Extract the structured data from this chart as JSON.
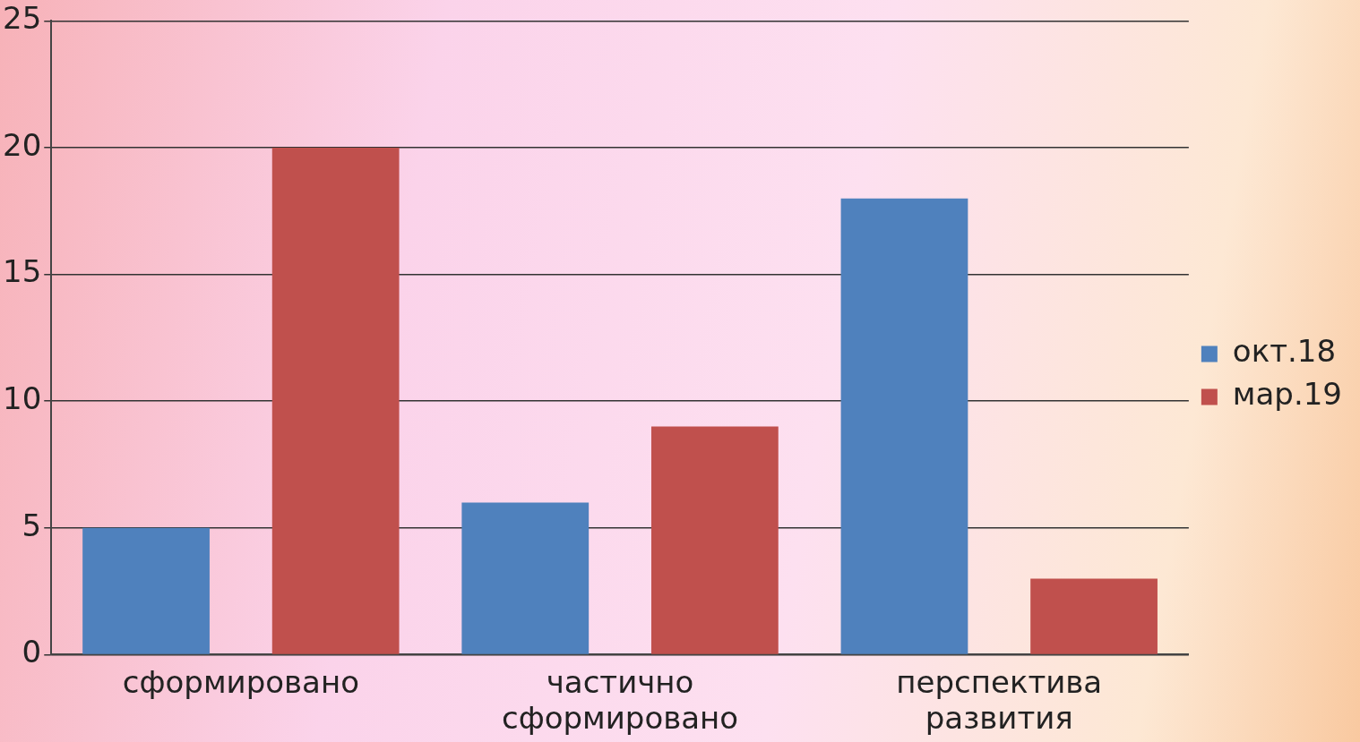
{
  "chart_data": {
    "type": "bar",
    "categories": [
      "сформировано",
      "частично сформировано",
      "перспектива развития"
    ],
    "series": [
      {
        "name": "окт.18",
        "color": "#4f81bd",
        "values": [
          5,
          6,
          18
        ]
      },
      {
        "name": "мар.19",
        "color": "#c0504d",
        "values": [
          20,
          9,
          3
        ]
      }
    ],
    "ylim": [
      0,
      25
    ],
    "yticks": [
      0,
      5,
      10,
      15,
      20,
      25
    ],
    "grid": "y",
    "legend": "right"
  }
}
